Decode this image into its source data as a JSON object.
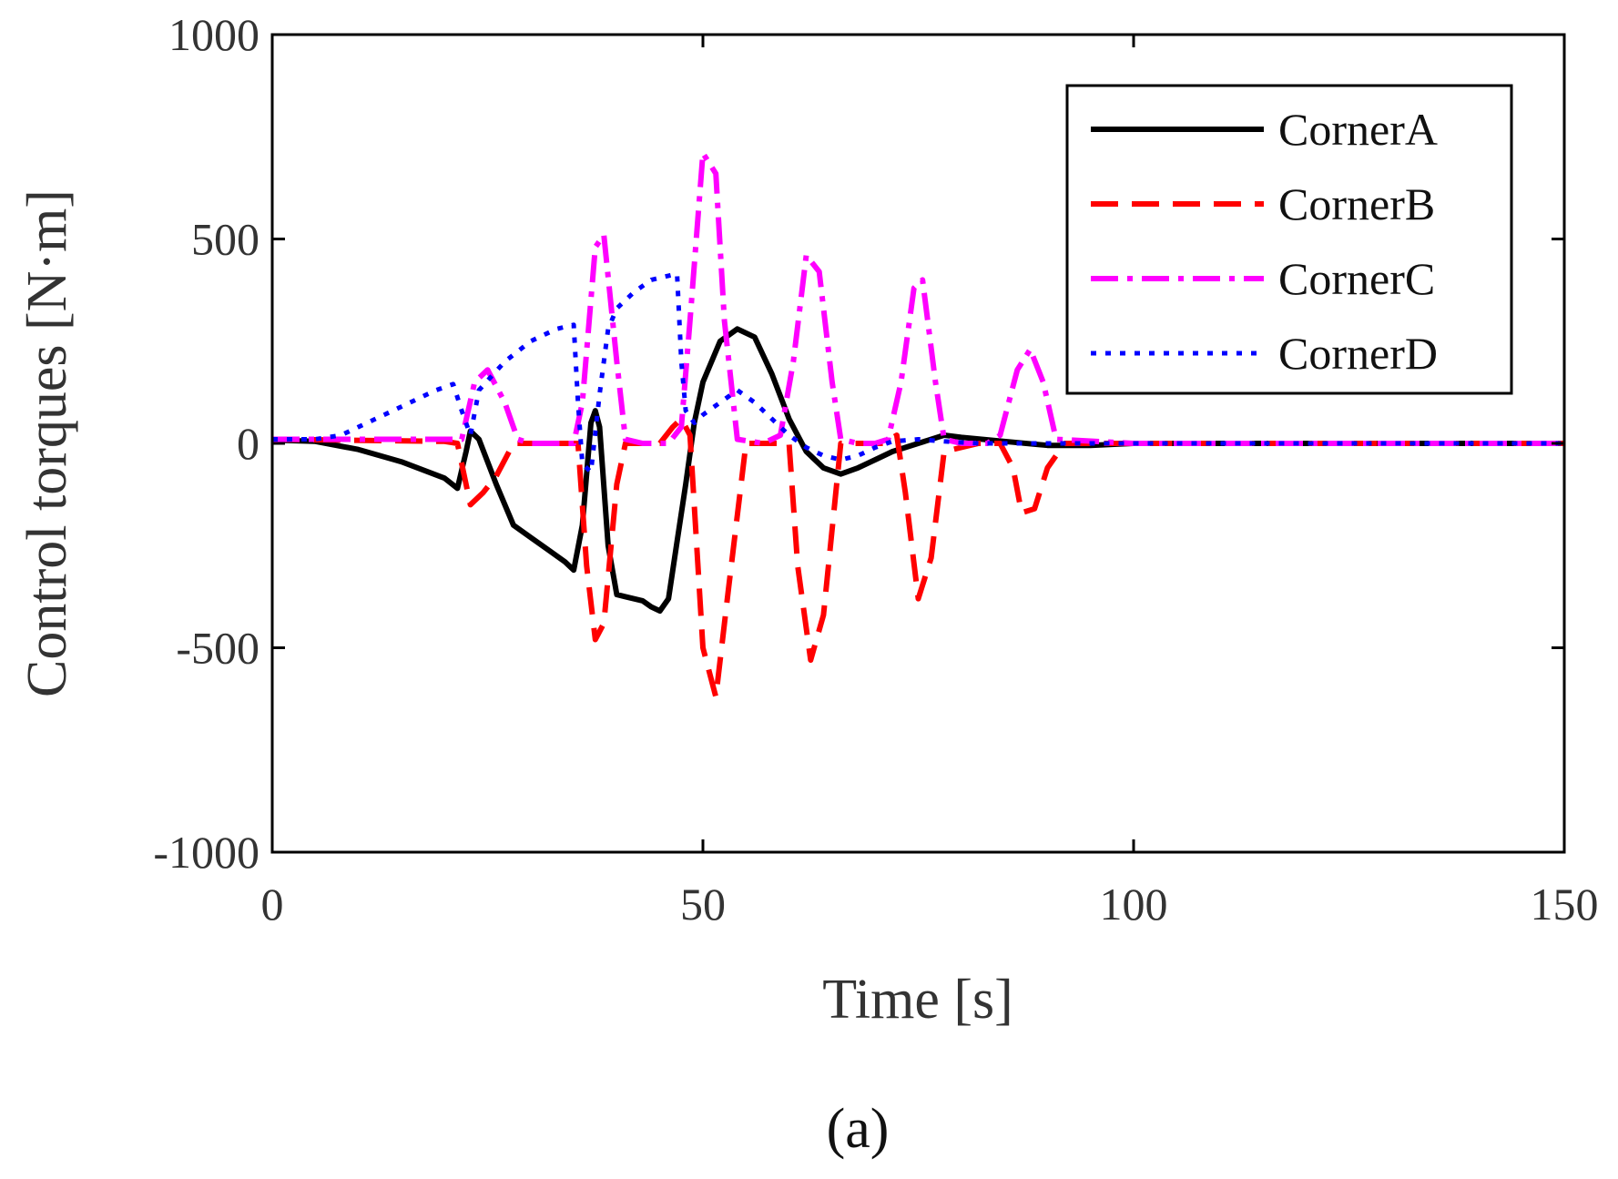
{
  "panel_label": "(a)",
  "chart_data": {
    "type": "line",
    "xlabel": "Time [s]",
    "ylabel": "Control torques [N·m]",
    "xlim": [
      0,
      150
    ],
    "ylim": [
      -1000,
      1000
    ],
    "xticks": [
      0,
      50,
      100,
      150
    ],
    "yticks": [
      -1000,
      -500,
      0,
      500,
      1000
    ],
    "xtick_labels": [
      "0",
      "50",
      "100",
      "150"
    ],
    "ytick_labels": [
      "-1000",
      "-500",
      "0",
      "500",
      "1000"
    ],
    "grid": false,
    "legend": {
      "position": "top-right",
      "entries": [
        "CornerA",
        "CornerB",
        "CornerC",
        "CornerD"
      ]
    },
    "series": [
      {
        "name": "CornerA",
        "color": "#000000",
        "dash": "solid",
        "x": [
          0,
          5,
          10,
          15,
          20,
          21.5,
          22.5,
          23,
          24,
          26,
          28,
          30,
          32,
          34,
          35,
          36,
          37,
          37.5,
          38,
          39,
          40,
          41,
          43,
          44,
          45,
          46,
          47,
          48,
          49,
          50,
          52,
          54,
          56,
          58,
          60,
          62,
          64,
          66,
          68,
          70,
          72,
          75,
          78,
          80,
          85,
          90,
          95,
          100,
          110,
          120,
          150
        ],
        "y": [
          8,
          5,
          -15,
          -45,
          -85,
          -110,
          -20,
          30,
          10,
          -100,
          -200,
          -230,
          -260,
          -290,
          -310,
          -200,
          50,
          80,
          40,
          -250,
          -370,
          -375,
          -385,
          -400,
          -410,
          -380,
          -240,
          -100,
          50,
          150,
          250,
          280,
          260,
          170,
          60,
          -20,
          -60,
          -75,
          -60,
          -40,
          -20,
          0,
          20,
          15,
          5,
          -5,
          -5,
          0,
          0,
          0,
          0
        ]
      },
      {
        "name": "CornerB",
        "color": "#ff0000",
        "dash": "30,15",
        "x": [
          0,
          20,
          21.5,
          23,
          24.5,
          26,
          28,
          30,
          34,
          35.5,
          36.5,
          37.5,
          38.5,
          40,
          41,
          42.5,
          45,
          46.5,
          47.5,
          48.5,
          50,
          51.5,
          53,
          55,
          58,
          60,
          61,
          62.5,
          64,
          66,
          69,
          71,
          72.5,
          73.5,
          75,
          76.5,
          78,
          82,
          84.5,
          86,
          87,
          88.5,
          90,
          92,
          95,
          100,
          150
        ],
        "y": [
          10,
          5,
          0,
          -150,
          -120,
          -80,
          0,
          0,
          0,
          0,
          -300,
          -480,
          -440,
          -100,
          0,
          0,
          0,
          40,
          60,
          20,
          -500,
          -620,
          -350,
          0,
          0,
          0,
          -300,
          -530,
          -420,
          0,
          0,
          0,
          20,
          -120,
          -380,
          -280,
          -20,
          0,
          0,
          -60,
          -170,
          -160,
          -60,
          0,
          0,
          0,
          0
        ]
      },
      {
        "name": "CornerC",
        "color": "#ff00ff",
        "dash": "30,10,6,10",
        "x": [
          0,
          20,
          22,
          23.5,
          25,
          27,
          28.5,
          30,
          35,
          36,
          37.5,
          38.5,
          40,
          41,
          43,
          46,
          47.5,
          48.5,
          50,
          51.5,
          52.5,
          54,
          57,
          59,
          60.5,
          62,
          63.5,
          65,
          66,
          68,
          70,
          71.5,
          73,
          74.5,
          75.5,
          77,
          78,
          80,
          83,
          84.5,
          86.5,
          88,
          89.5,
          91,
          100,
          150
        ],
        "y": [
          10,
          10,
          10,
          150,
          180,
          100,
          10,
          0,
          0,
          100,
          480,
          510,
          200,
          10,
          0,
          0,
          40,
          300,
          710,
          660,
          300,
          10,
          0,
          20,
          200,
          460,
          420,
          150,
          10,
          0,
          0,
          10,
          150,
          380,
          400,
          150,
          10,
          0,
          0,
          20,
          180,
          230,
          150,
          10,
          0,
          0
        ]
      },
      {
        "name": "CornerD",
        "color": "#0000ff",
        "dash": "6,10",
        "x": [
          0,
          5,
          8,
          10,
          13,
          16,
          19,
          21,
          22,
          23,
          24,
          27,
          30,
          33,
          35,
          35.5,
          36,
          37,
          38,
          39,
          40,
          42,
          44,
          46,
          47,
          47.5,
          48,
          49,
          50,
          52,
          54,
          56,
          58,
          60,
          62,
          64,
          66,
          68,
          70,
          72,
          75,
          78,
          82,
          90,
          95,
          100,
          150
        ],
        "y": [
          10,
          10,
          20,
          40,
          70,
          100,
          130,
          145,
          80,
          20,
          130,
          200,
          250,
          280,
          290,
          100,
          -50,
          -70,
          120,
          280,
          330,
          370,
          400,
          410,
          415,
          200,
          80,
          50,
          70,
          100,
          130,
          100,
          60,
          20,
          -10,
          -30,
          -40,
          -30,
          -10,
          5,
          10,
          5,
          0,
          0,
          0,
          0,
          0
        ]
      }
    ]
  }
}
